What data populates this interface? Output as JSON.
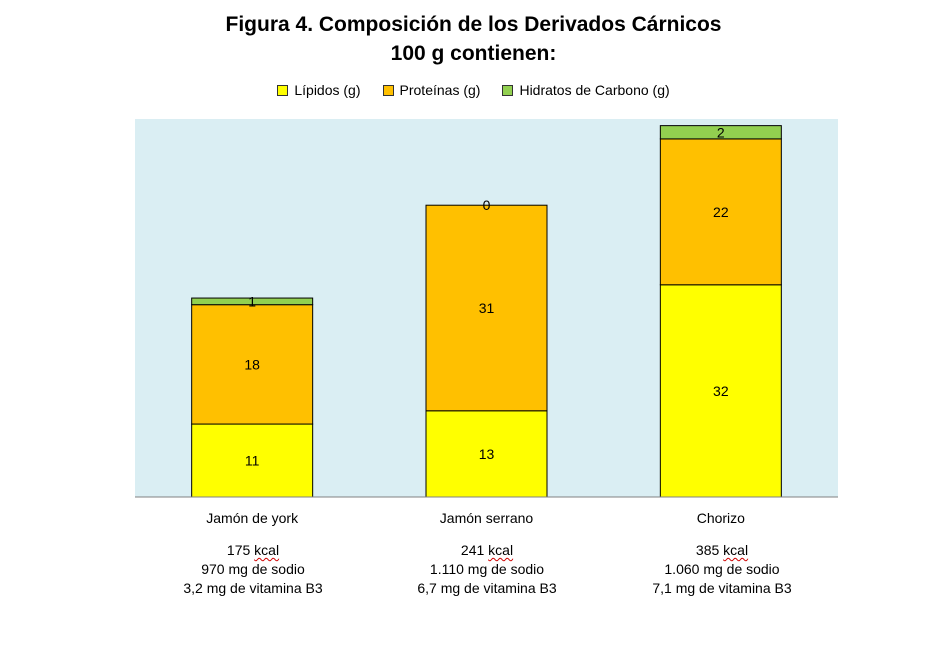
{
  "title_line1": "Figura 4. Composición de los Derivados Cárnicos",
  "title_line2": "100 g contienen:",
  "legend": [
    {
      "label": "Lípidos (g)",
      "color": "#FFFF00"
    },
    {
      "label": "Proteínas (g)",
      "color": "#FFC000"
    },
    {
      "label": "Hidratos de Carbono (g)",
      "color": "#92D050"
    }
  ],
  "chart_data": {
    "type": "bar",
    "stacked": true,
    "categories": [
      "Jamón de york",
      "Jamón serrano",
      "Chorizo"
    ],
    "series": [
      {
        "name": "Lípidos (g)",
        "values": [
          11,
          13,
          32
        ],
        "color": "#FFFF00"
      },
      {
        "name": "Proteínas (g)",
        "values": [
          18,
          31,
          22
        ],
        "color": "#FFC000"
      },
      {
        "name": "Hidratos de Carbono (g)",
        "values": [
          1,
          0,
          2
        ],
        "color": "#92D050"
      }
    ],
    "ylim": [
      0,
      57
    ],
    "plot_background": "#DAEEF3",
    "legend_position": "top",
    "grid": false
  },
  "category_notes": [
    {
      "kcal": "175",
      "kcal_unit": "kcal",
      "sodio": "970 mg de sodio",
      "vitamina": "3,2 mg de vitamina B3"
    },
    {
      "kcal": "241",
      "kcal_unit": "kcal",
      "sodio": "1.110 mg de sodio",
      "vitamina": "6,7 mg de vitamina B3"
    },
    {
      "kcal": "385",
      "kcal_unit": "kcal",
      "sodio": "1.060 mg de sodio",
      "vitamina": "7,1 mg de vitamina B3"
    }
  ]
}
